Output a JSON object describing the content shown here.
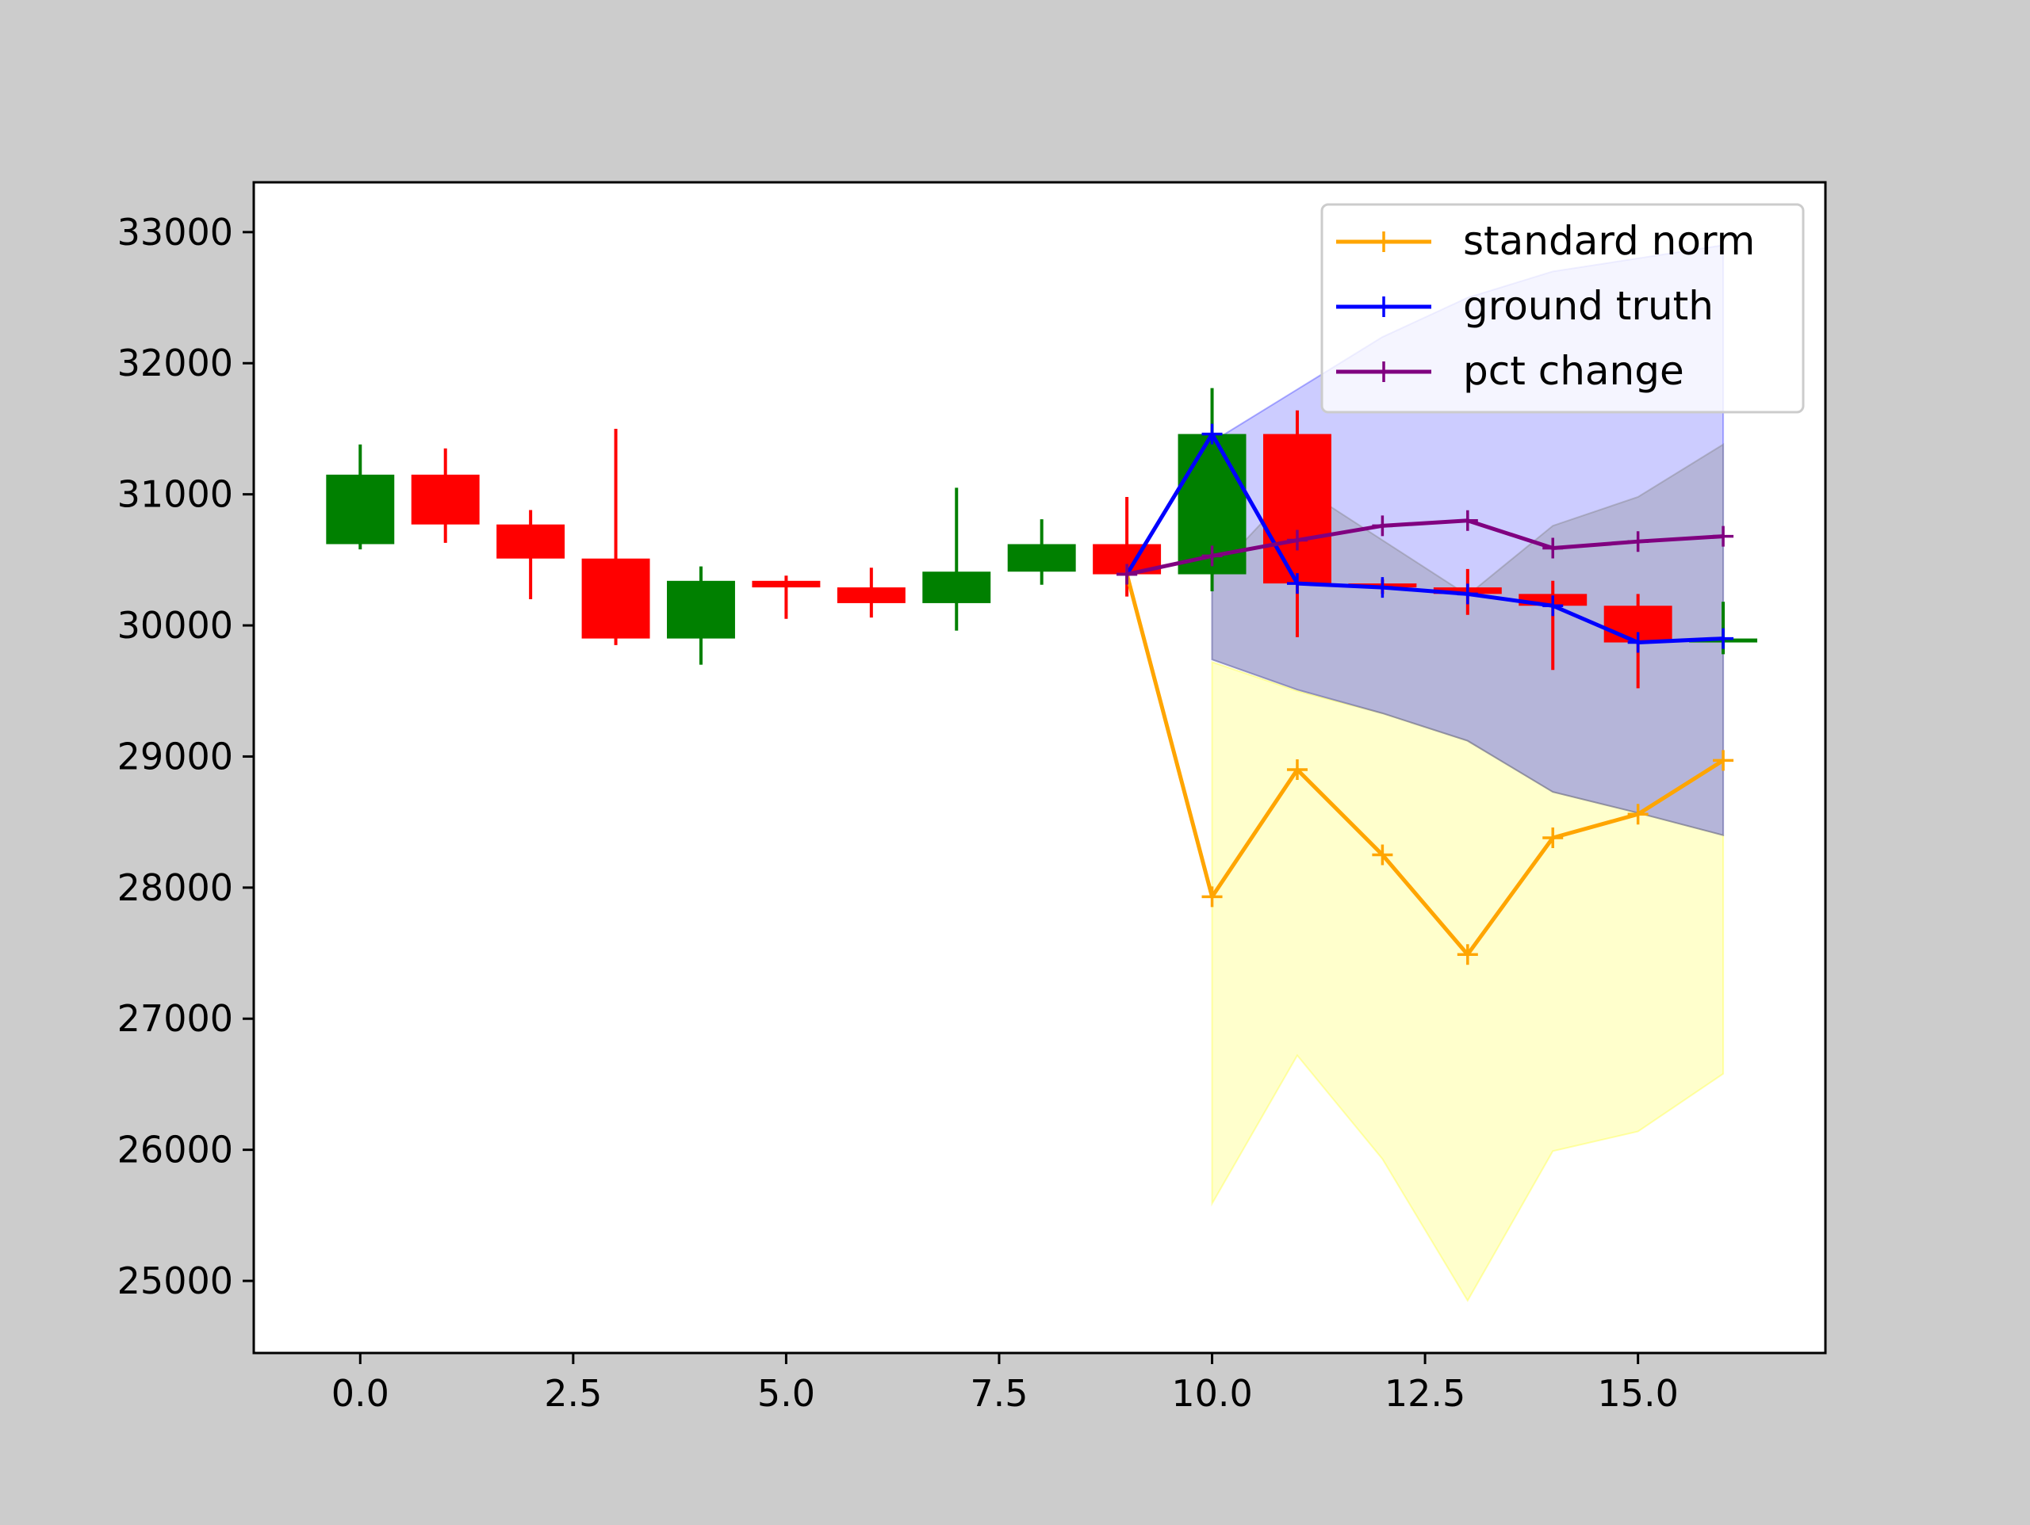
{
  "figure": {
    "background": "#cccccc",
    "plot_background": "#ffffff"
  },
  "chart_data": {
    "type": "candlestick",
    "title": "",
    "xlabel": "",
    "ylabel": "",
    "xlim": [
      -1.25,
      17.2
    ],
    "ylim": [
      24450,
      33380
    ],
    "xticks": [
      0.0,
      2.5,
      5.0,
      7.5,
      10.0,
      12.5,
      15.0
    ],
    "xtick_labels": [
      "0.0",
      "2.5",
      "5.0",
      "7.5",
      "10.0",
      "12.5",
      "15.0"
    ],
    "yticks": [
      25000,
      26000,
      27000,
      28000,
      29000,
      30000,
      31000,
      32000,
      33000
    ],
    "ytick_labels": [
      "25000",
      "26000",
      "27000",
      "28000",
      "29000",
      "30000",
      "31000",
      "32000",
      "33000"
    ],
    "grid": false,
    "legend_position": "top-right",
    "candles": [
      {
        "x": 0,
        "open": 30620,
        "close": 31150,
        "high": 31380,
        "low": 30580,
        "color": "#008000"
      },
      {
        "x": 1,
        "open": 31150,
        "close": 30770,
        "high": 31350,
        "low": 30630,
        "color": "#ff0000"
      },
      {
        "x": 2,
        "open": 30770,
        "close": 30510,
        "high": 30880,
        "low": 30200,
        "color": "#ff0000"
      },
      {
        "x": 3,
        "open": 30510,
        "close": 29900,
        "high": 31500,
        "low": 29850,
        "color": "#ff0000"
      },
      {
        "x": 4,
        "open": 29900,
        "close": 30340,
        "high": 30450,
        "low": 29700,
        "color": "#008000"
      },
      {
        "x": 5,
        "open": 30340,
        "close": 30290,
        "high": 30380,
        "low": 30050,
        "color": "#ff0000"
      },
      {
        "x": 6,
        "open": 30290,
        "close": 30170,
        "high": 30440,
        "low": 30060,
        "color": "#ff0000"
      },
      {
        "x": 7,
        "open": 30170,
        "close": 30410,
        "high": 31050,
        "low": 29960,
        "color": "#008000"
      },
      {
        "x": 8,
        "open": 30410,
        "close": 30620,
        "high": 30810,
        "low": 30310,
        "color": "#008000"
      },
      {
        "x": 9,
        "open": 30620,
        "close": 30390,
        "high": 30980,
        "low": 30220,
        "color": "#ff0000"
      },
      {
        "x": 10,
        "open": 30390,
        "close": 31460,
        "high": 31810,
        "low": 30260,
        "color": "#008000"
      },
      {
        "x": 11,
        "open": 31460,
        "close": 30320,
        "high": 31640,
        "low": 29910,
        "color": "#ff0000"
      },
      {
        "x": 12,
        "open": 30320,
        "close": 30290,
        "high": 30350,
        "low": 30240,
        "color": "#ff0000"
      },
      {
        "x": 13,
        "open": 30290,
        "close": 30240,
        "high": 30430,
        "low": 30080,
        "color": "#ff0000"
      },
      {
        "x": 14,
        "open": 30240,
        "close": 30150,
        "high": 30340,
        "low": 29660,
        "color": "#ff0000"
      },
      {
        "x": 15,
        "open": 30150,
        "close": 29870,
        "high": 30240,
        "low": 29520,
        "color": "#ff0000"
      },
      {
        "x": 16,
        "open": 29870,
        "close": 29900,
        "high": 30180,
        "low": 29780,
        "color": "#008000"
      }
    ],
    "series": [
      {
        "name": "standard norm",
        "color": "#ffa500",
        "x": [
          9,
          10,
          11,
          12,
          13,
          14,
          15,
          16
        ],
        "values": [
          30390,
          27930,
          28900,
          28250,
          27490,
          28380,
          28560,
          28970
        ]
      },
      {
        "name": "ground truth",
        "color": "#0000ff",
        "x": [
          9,
          10,
          11,
          12,
          13,
          14,
          15,
          16
        ],
        "values": [
          30390,
          31460,
          30320,
          30290,
          30240,
          30150,
          29870,
          29900
        ]
      },
      {
        "name": "pct change",
        "color": "#800080",
        "x": [
          9,
          10,
          11,
          12,
          13,
          14,
          15,
          16
        ],
        "values": [
          30390,
          30530,
          30650,
          30760,
          30800,
          30590,
          30640,
          30680
        ]
      }
    ],
    "bands": [
      {
        "series": "standard norm",
        "color": "#ffff00",
        "opacity": 0.2,
        "x": [
          10,
          11,
          12,
          13,
          14,
          15,
          16
        ],
        "lower": [
          25590,
          26720,
          25930,
          24850,
          25990,
          26140,
          26580
        ],
        "upper": [
          29720,
          29500,
          29330,
          29120,
          28730,
          28570,
          28400
        ]
      },
      {
        "series": "ground truth",
        "color": "#0000ff",
        "opacity": 0.2,
        "x": [
          10,
          11,
          12,
          13,
          14,
          15,
          16
        ],
        "lower": [
          29740,
          29510,
          29330,
          29120,
          28730,
          28570,
          28400
        ],
        "upper": [
          31400,
          31800,
          32200,
          32500,
          32700,
          32800,
          32900
        ]
      },
      {
        "series": "pct change",
        "color": "#808080",
        "opacity": 0.3,
        "x": [
          10,
          11,
          12,
          13,
          14,
          15,
          16
        ],
        "lower": [
          29740,
          29510,
          29330,
          29120,
          28730,
          28570,
          28400
        ],
        "upper": [
          30380,
          31070,
          30650,
          30230,
          30760,
          30980,
          31380
        ]
      }
    ]
  }
}
